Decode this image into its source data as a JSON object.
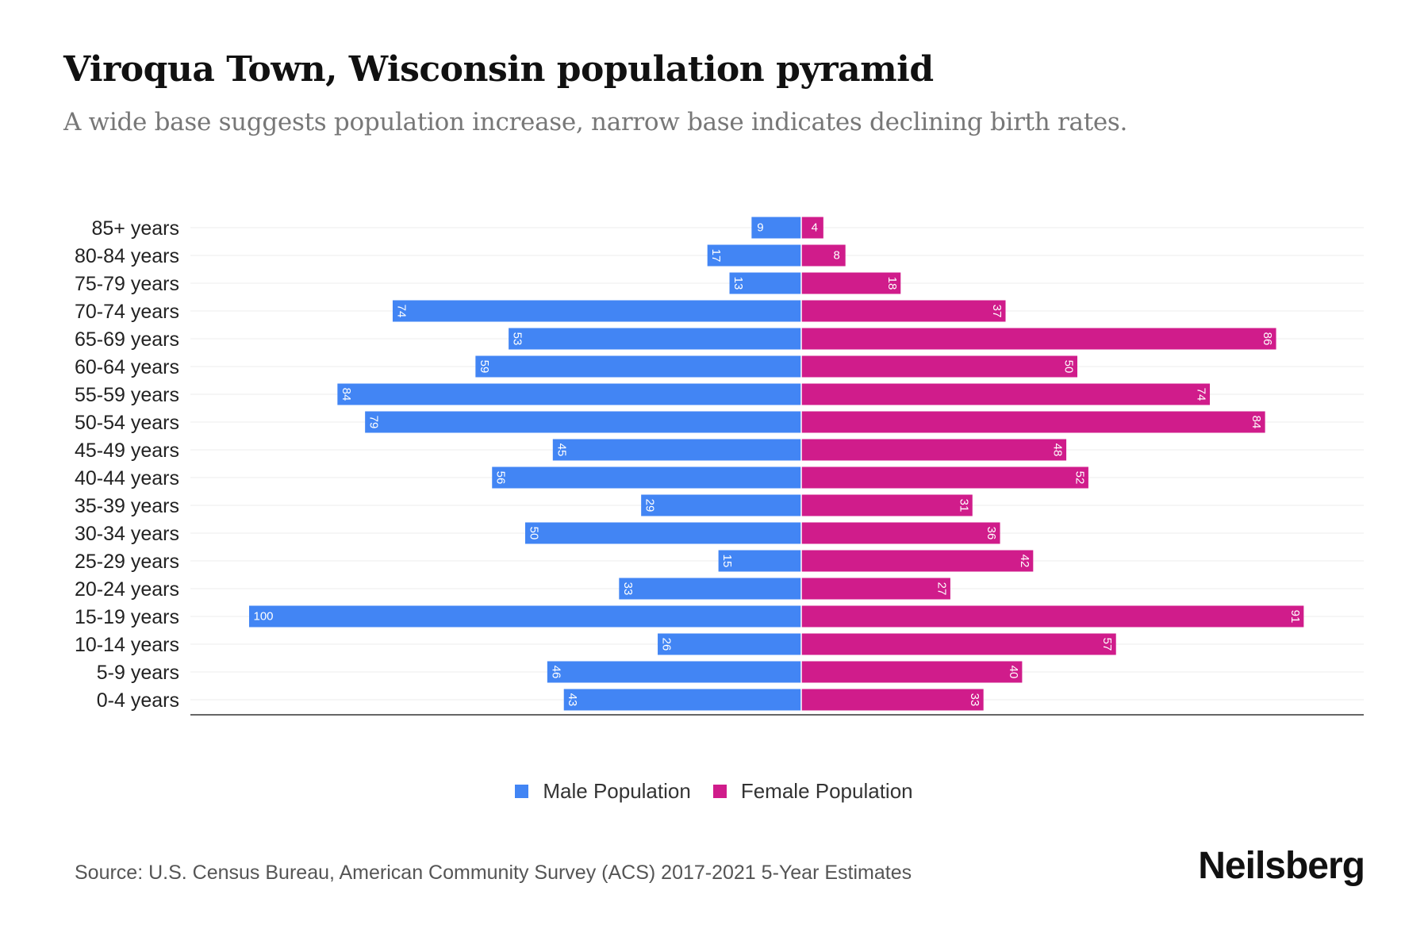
{
  "title": "Viroqua Town, Wisconsin population pyramid",
  "subtitle": "A wide base suggests population increase, narrow base indicates declining birth rates.",
  "source": "Source: U.S. Census Bureau, American Community Survey (ACS) 2017-2021 5-Year Estimates",
  "logo": "Neilsberg",
  "chart_data": {
    "type": "bar",
    "orientation": "horizontal-pyramid",
    "categories": [
      "85+ years",
      "80-84 years",
      "75-79 years",
      "70-74 years",
      "65-69 years",
      "60-64 years",
      "55-59 years",
      "50-54 years",
      "45-49 years",
      "40-44 years",
      "35-39 years",
      "30-34 years",
      "25-29 years",
      "20-24 years",
      "15-19 years",
      "10-14 years",
      "5-9 years",
      "0-4 years"
    ],
    "series": [
      {
        "name": "Male Population",
        "color": "#4285f4",
        "values": [
          9,
          17,
          13,
          74,
          53,
          59,
          84,
          79,
          45,
          56,
          29,
          50,
          15,
          33,
          100,
          26,
          46,
          43
        ]
      },
      {
        "name": "Female Population",
        "color": "#d01c8b",
        "values": [
          4,
          8,
          18,
          37,
          86,
          50,
          74,
          84,
          48,
          52,
          31,
          36,
          42,
          27,
          91,
          57,
          40,
          33
        ]
      }
    ],
    "xlim": [
      -100,
      100
    ],
    "grid": true,
    "legend_position": "bottom-center"
  }
}
